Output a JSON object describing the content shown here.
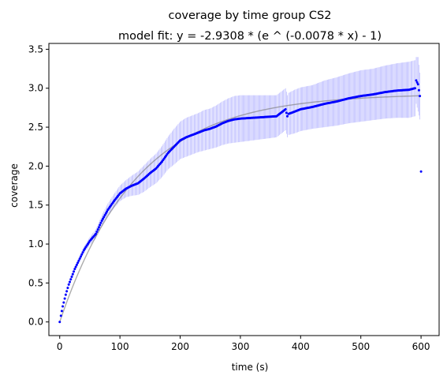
{
  "chart_data": {
    "type": "scatter",
    "title": "coverage by time group CS2",
    "subtitle": "model fit: y = -2.9308 * (e ^ (-0.0078 * x) - 1)",
    "xlabel": "time (s)",
    "ylabel": "coverage",
    "xlim": [
      -18,
      630
    ],
    "ylim": [
      -0.175,
      3.575
    ],
    "xticks": [
      0,
      100,
      200,
      300,
      400,
      500,
      600
    ],
    "yticks": [
      0.0,
      0.5,
      1.0,
      1.5,
      2.0,
      2.5,
      3.0,
      3.5
    ],
    "xtick_labels": [
      "0",
      "100",
      "200",
      "300",
      "400",
      "500",
      "600"
    ],
    "ytick_labels": [
      "0.0",
      "0.5",
      "1.0",
      "1.5",
      "2.0",
      "2.5",
      "3.0",
      "3.5"
    ],
    "grid": false,
    "legend": "none",
    "colors": {
      "points": "#0000ff",
      "band": "#8080ff",
      "fit": "#808080",
      "axes": "#000000"
    },
    "fit_model": {
      "a": 2.9308,
      "b": 0.0078
    },
    "series": [
      {
        "kind": "points_with_band",
        "x": [
          0,
          2,
          5,
          10,
          15,
          20,
          25,
          30,
          40,
          50,
          60,
          70,
          80,
          90,
          100,
          110,
          120,
          130,
          140,
          150,
          160,
          170,
          180,
          190,
          200,
          210,
          220,
          230,
          240,
          250,
          260,
          270,
          280,
          290,
          300,
          320,
          340,
          360,
          375,
          378,
          380,
          390,
          400,
          420,
          440,
          460,
          480,
          500,
          520,
          540,
          560,
          580,
          590,
          592,
          595,
          598,
          600
        ],
        "y": [
          0.0,
          0.08,
          0.2,
          0.35,
          0.48,
          0.58,
          0.68,
          0.76,
          0.92,
          1.04,
          1.13,
          1.3,
          1.44,
          1.55,
          1.65,
          1.71,
          1.75,
          1.78,
          1.84,
          1.91,
          1.97,
          2.06,
          2.17,
          2.25,
          2.33,
          2.37,
          2.4,
          2.43,
          2.46,
          2.48,
          2.51,
          2.55,
          2.58,
          2.6,
          2.61,
          2.62,
          2.63,
          2.64,
          2.73,
          2.64,
          2.67,
          2.7,
          2.73,
          2.76,
          2.8,
          2.83,
          2.87,
          2.9,
          2.92,
          2.95,
          2.97,
          2.98,
          3.0,
          3.1,
          3.05,
          2.9,
          1.93
        ],
        "err": [
          0.0,
          0.01,
          0.01,
          0.02,
          0.02,
          0.03,
          0.03,
          0.03,
          0.04,
          0.05,
          0.06,
          0.07,
          0.08,
          0.09,
          0.1,
          0.11,
          0.13,
          0.15,
          0.17,
          0.18,
          0.19,
          0.2,
          0.21,
          0.23,
          0.24,
          0.25,
          0.25,
          0.25,
          0.26,
          0.26,
          0.27,
          0.28,
          0.29,
          0.3,
          0.3,
          0.29,
          0.28,
          0.27,
          0.27,
          0.27,
          0.27,
          0.28,
          0.28,
          0.28,
          0.3,
          0.31,
          0.32,
          0.33,
          0.33,
          0.34,
          0.35,
          0.36,
          0.36,
          0.3,
          0.35,
          0.3,
          0.0
        ]
      }
    ]
  }
}
